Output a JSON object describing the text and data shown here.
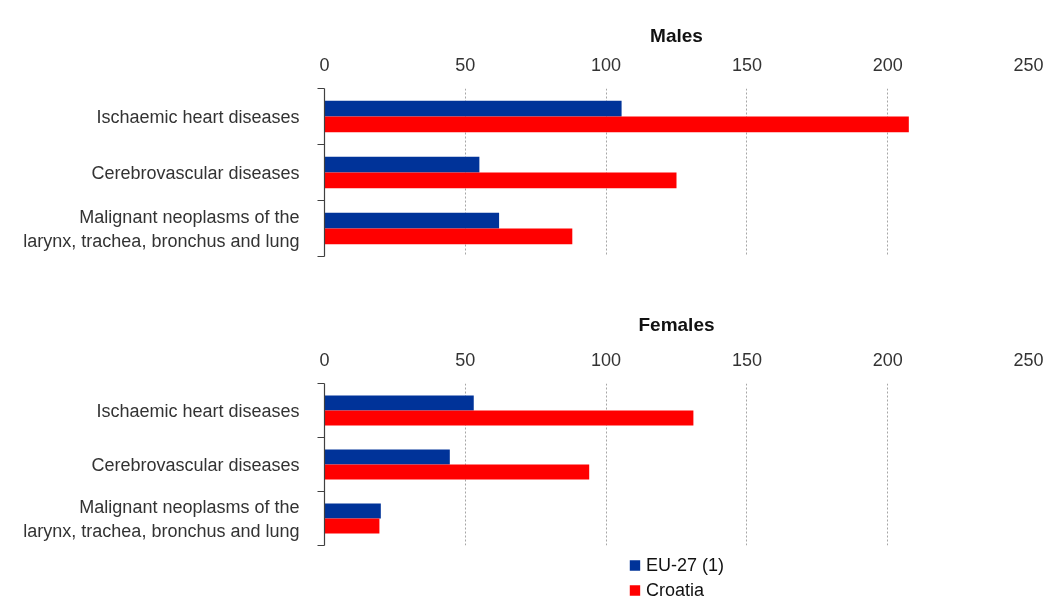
{
  "chart_data": [
    {
      "type": "bar",
      "orientation": "horizontal",
      "title": "Males",
      "categories": [
        "Ischaemic heart diseases",
        "Cerebrovascular diseases",
        "Malignant neoplasms of the larynx, trachea, bronchus and lung"
      ],
      "series": [
        {
          "color": "#003399",
          "values": [
            105.5,
            55,
            62
          ]
        },
        {
          "color": "#ff0000",
          "values": [
            207.5,
            125,
            88
          ]
        }
      ],
      "xlim": [
        0,
        250
      ],
      "xticks": [
        0,
        50,
        100,
        150,
        200,
        250
      ],
      "grid": "x"
    },
    {
      "type": "bar",
      "orientation": "horizontal",
      "title": "Females",
      "categories": [
        "Ischaemic heart diseases",
        "Cerebrovascular diseases",
        "Malignant neoplasms of the larynx, trachea, bronchus and lung"
      ],
      "series": [
        {
          "name": "EU-27 (1)",
          "color": "#003399",
          "values": [
            53,
            44.5,
            20
          ]
        },
        {
          "name": "Croatia",
          "color": "#ff0000",
          "values": [
            131,
            94,
            19.5
          ]
        }
      ],
      "xlim": [
        0,
        250
      ],
      "xticks": [
        0,
        50,
        100,
        150,
        200,
        250
      ],
      "grid": "x",
      "legend": "bottom"
    }
  ]
}
